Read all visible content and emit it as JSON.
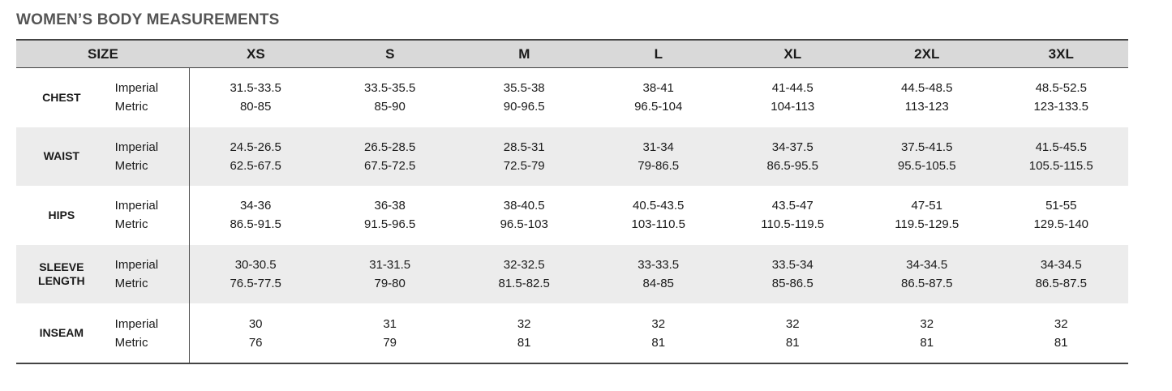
{
  "title": "WOMEN’S BODY MEASUREMENTS",
  "header": {
    "size_label": "SIZE",
    "sizes": [
      "XS",
      "S",
      "M",
      "L",
      "XL",
      "2XL",
      "3XL"
    ]
  },
  "units": {
    "imperial": "Imperial",
    "metric": "Metric"
  },
  "rows": [
    {
      "name": [
        "CHEST"
      ],
      "imperial": [
        "31.5-33.5",
        "33.5-35.5",
        "35.5-38",
        "38-41",
        "41-44.5",
        "44.5-48.5",
        "48.5-52.5"
      ],
      "metric": [
        "80-85",
        "85-90",
        "90-96.5",
        "96.5-104",
        "104-113",
        "113-123",
        "123-133.5"
      ]
    },
    {
      "name": [
        "WAIST"
      ],
      "imperial": [
        "24.5-26.5",
        "26.5-28.5",
        "28.5-31",
        "31-34",
        "34-37.5",
        "37.5-41.5",
        "41.5-45.5"
      ],
      "metric": [
        "62.5-67.5",
        "67.5-72.5",
        "72.5-79",
        "79-86.5",
        "86.5-95.5",
        "95.5-105.5",
        "105.5-115.5"
      ]
    },
    {
      "name": [
        "HIPS"
      ],
      "imperial": [
        "34-36",
        "36-38",
        "38-40.5",
        "40.5-43.5",
        "43.5-47",
        "47-51",
        "51-55"
      ],
      "metric": [
        "86.5-91.5",
        "91.5-96.5",
        "96.5-103",
        "103-110.5",
        "110.5-119.5",
        "119.5-129.5",
        "129.5-140"
      ]
    },
    {
      "name": [
        "SLEEVE",
        "LENGTH"
      ],
      "imperial": [
        "30-30.5",
        "31-31.5",
        "32-32.5",
        "33-33.5",
        "33.5-34",
        "34-34.5",
        "34-34.5"
      ],
      "metric": [
        "76.5-77.5",
        "79-80",
        "81.5-82.5",
        "84-85",
        "85-86.5",
        "86.5-87.5",
        "86.5-87.5"
      ]
    },
    {
      "name": [
        "INSEAM"
      ],
      "imperial": [
        "30",
        "31",
        "32",
        "32",
        "32",
        "32",
        "32"
      ],
      "metric": [
        "76",
        "79",
        "81",
        "81",
        "81",
        "81",
        "81"
      ]
    }
  ]
}
